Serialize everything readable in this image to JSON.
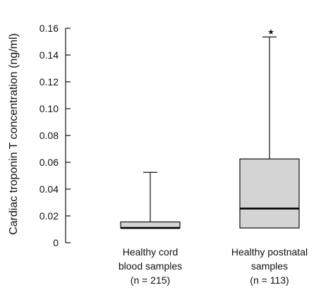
{
  "chart_data": {
    "type": "box",
    "ylabel": "Cardiac troponin T concentration (ng/ml)",
    "ylim": [
      0,
      0.16
    ],
    "yticks": [
      "0",
      "0.02",
      "0.04",
      "0.06",
      "0.08",
      "0.10",
      "0.12",
      "0.14",
      "0.16"
    ],
    "ytick_values": [
      0,
      0.02,
      0.04,
      0.06,
      0.08,
      0.1,
      0.12,
      0.14,
      0.16
    ],
    "box_color": "#d4d4d4",
    "grid": false,
    "groups": [
      {
        "label_lines": [
          "Healthy cord",
          "blood samples",
          "(n = 215)"
        ],
        "whisker_low": 0.011,
        "q1": 0.011,
        "median": 0.011,
        "q3": 0.0155,
        "whisker_high": 0.0525,
        "outlier_marker": ""
      },
      {
        "label_lines": [
          "Healthy postnatal",
          "samples",
          "(n = 113)"
        ],
        "whisker_low": 0.011,
        "q1": 0.011,
        "median": 0.0255,
        "q3": 0.0625,
        "whisker_high": 0.1535,
        "outlier_marker": "★",
        "outlier_value": 0.158
      }
    ]
  }
}
